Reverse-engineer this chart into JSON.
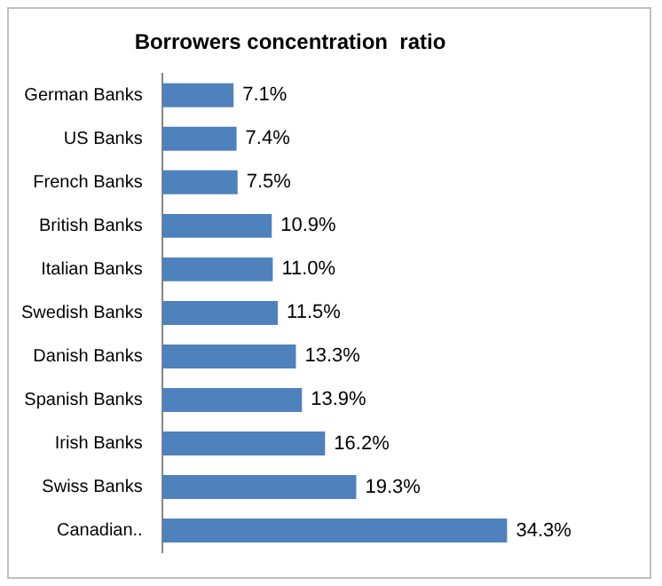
{
  "chart_data": {
    "type": "bar",
    "orientation": "horizontal",
    "title": "Borrowers concentration  ratio",
    "categories": [
      "German Banks",
      "US Banks",
      "French Banks",
      "British Banks",
      "Italian Banks",
      "Swedish Banks",
      "Danish Banks",
      "Spanish Banks",
      "Irish Banks",
      "Swiss Banks",
      "Canadian.."
    ],
    "values": [
      7.1,
      7.4,
      7.5,
      10.9,
      11.0,
      11.5,
      13.3,
      13.9,
      16.2,
      19.3,
      34.3
    ],
    "value_labels": [
      "7.1%",
      "7.4%",
      "7.5%",
      "10.9%",
      "11.0%",
      "11.5%",
      "13.3%",
      "13.9%",
      "16.2%",
      "19.3%",
      "34.3%"
    ],
    "color": "#4f81bd"
  }
}
